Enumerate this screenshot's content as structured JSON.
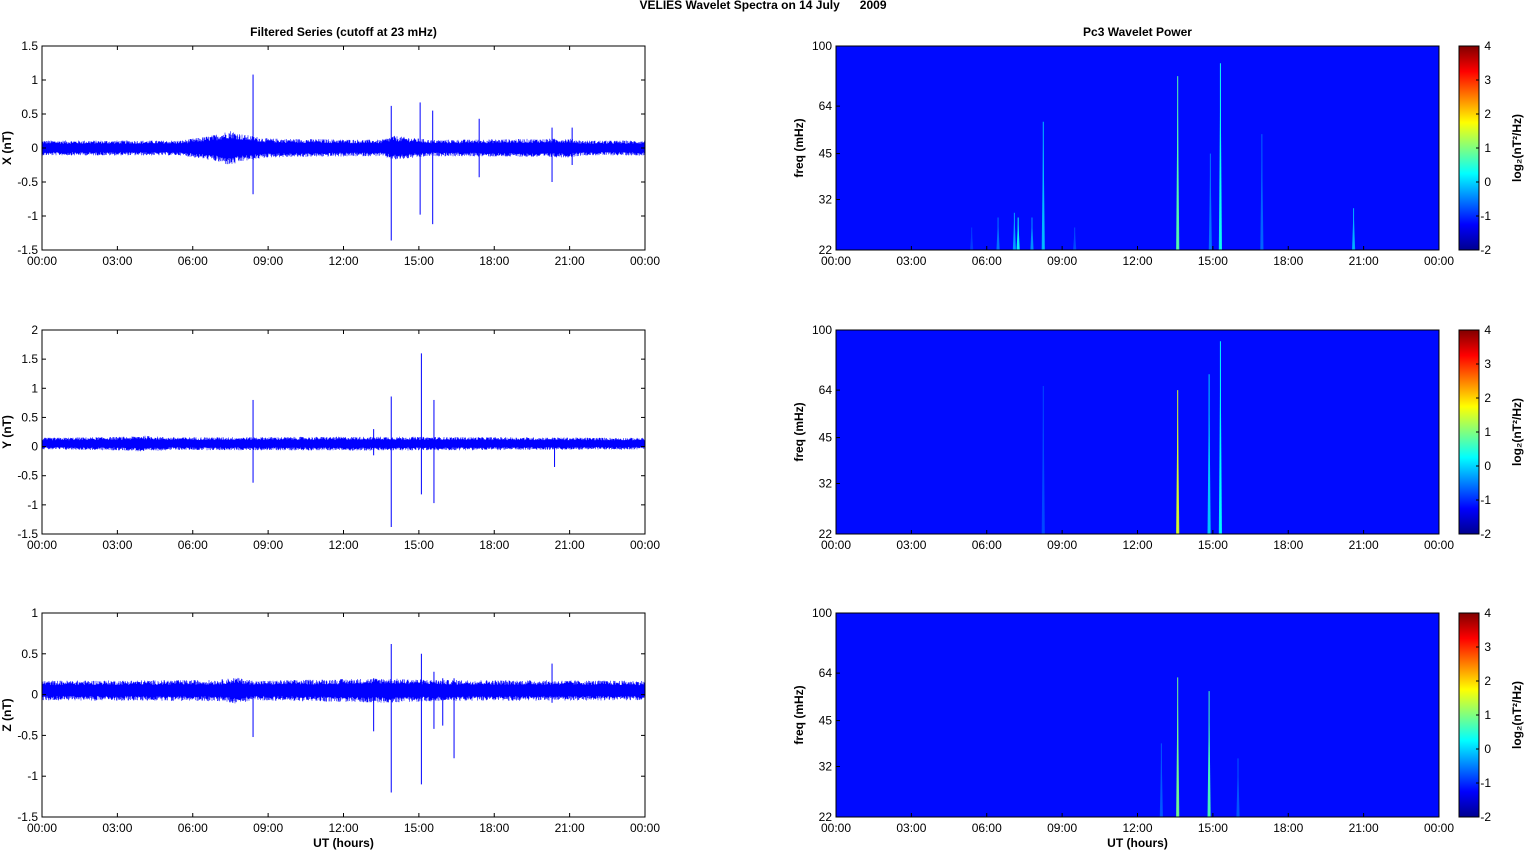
{
  "figure": {
    "title": "VELIES Wavelet Spectra on 14 July      2009",
    "left_title": "Filtered Series (cutoff at 23 mHz)",
    "right_title": "Pc3 Wavelet Power"
  },
  "chart_data": [
    {
      "type": "line",
      "panel": "x-series",
      "title": "Filtered Series (cutoff at 23 mHz)",
      "xlabel": "",
      "ylabel": "X (nT)",
      "xlim": [
        0,
        24
      ],
      "ylim": [
        -1.5,
        1.5
      ],
      "xticks": [
        0,
        3,
        6,
        9,
        12,
        15,
        18,
        21,
        24
      ],
      "xticklabels": [
        "00:00",
        "03:00",
        "06:00",
        "09:00",
        "12:00",
        "15:00",
        "18:00",
        "21:00",
        "00:00"
      ],
      "yticks": [
        -1.5,
        -1,
        -0.5,
        0,
        0.5,
        1,
        1.5
      ],
      "yticklabels": [
        "-1.5",
        "-1",
        "-0.5",
        "0",
        "0.5",
        "1",
        "1.5"
      ],
      "baseline": 0,
      "noise_envelope": [
        {
          "x": 0,
          "amp": 0.11
        },
        {
          "x": 5.5,
          "amp": 0.11
        },
        {
          "x": 6.7,
          "amp": 0.18
        },
        {
          "x": 7.5,
          "amp": 0.26
        },
        {
          "x": 8.0,
          "amp": 0.2
        },
        {
          "x": 9.0,
          "amp": 0.14
        },
        {
          "x": 13.5,
          "amp": 0.12
        },
        {
          "x": 14.0,
          "amp": 0.18
        },
        {
          "x": 15.5,
          "amp": 0.12
        },
        {
          "x": 21.0,
          "amp": 0.14
        },
        {
          "x": 21.5,
          "amp": 0.11
        },
        {
          "x": 24,
          "amp": 0.11
        }
      ],
      "spikes": [
        {
          "x": 8.4,
          "ymin": -0.68,
          "ymax": 1.08
        },
        {
          "x": 13.9,
          "ymin": -1.36,
          "ymax": 0.62
        },
        {
          "x": 15.05,
          "ymin": -0.98,
          "ymax": 0.67
        },
        {
          "x": 15.55,
          "ymin": -1.12,
          "ymax": 0.55
        },
        {
          "x": 17.4,
          "ymin": -0.43,
          "ymax": 0.43
        },
        {
          "x": 20.3,
          "ymin": -0.5,
          "ymax": 0.3
        },
        {
          "x": 21.1,
          "ymin": -0.25,
          "ymax": 0.3
        }
      ]
    },
    {
      "type": "heatmap",
      "panel": "x-power",
      "title": "Pc3 Wavelet Power",
      "xlabel": "",
      "ylabel": "freq (mHz)",
      "colorbar_label": "log₂(nT²/Hz)",
      "xlim": [
        0,
        24
      ],
      "ylim": [
        22,
        100
      ],
      "yscale": "log",
      "clim": [
        -2,
        4
      ],
      "background_value": -2,
      "colormap": "jet",
      "xticks": [
        0,
        3,
        6,
        9,
        12,
        15,
        18,
        21,
        24
      ],
      "xticklabels": [
        "00:00",
        "03:00",
        "06:00",
        "09:00",
        "12:00",
        "15:00",
        "18:00",
        "21:00",
        "00:00"
      ],
      "yticks": [
        22,
        32,
        45,
        64,
        100
      ],
      "yticklabels": [
        "22",
        "32",
        "45",
        "64",
        "100"
      ],
      "cticks": [
        -2,
        -1,
        0,
        1,
        2,
        3,
        4
      ],
      "cticklabels": [
        "-2",
        "-1",
        "0",
        "1",
        "2",
        "3",
        "4"
      ],
      "bursts": [
        {
          "x": 5.4,
          "fmax": 26,
          "value": -1.6
        },
        {
          "x": 6.45,
          "fmax": 28,
          "value": -1.2
        },
        {
          "x": 7.1,
          "fmax": 29,
          "value": -0.9
        },
        {
          "x": 7.25,
          "fmax": 28,
          "value": -0.2
        },
        {
          "x": 7.8,
          "fmax": 28,
          "value": -1.0
        },
        {
          "x": 8.25,
          "fmax": 57,
          "value": -0.7
        },
        {
          "x": 9.5,
          "fmax": 26,
          "value": -1.5
        },
        {
          "x": 13.6,
          "fmax": 80,
          "value": 0.3
        },
        {
          "x": 14.9,
          "fmax": 45,
          "value": -1.2
        },
        {
          "x": 15.3,
          "fmax": 88,
          "value": -0.2
        },
        {
          "x": 16.95,
          "fmax": 52,
          "value": -1.3
        },
        {
          "x": 20.6,
          "fmax": 30,
          "value": -0.8
        }
      ]
    },
    {
      "type": "line",
      "panel": "y-series",
      "title": "",
      "xlabel": "",
      "ylabel": "Y (nT)",
      "xlim": [
        0,
        24
      ],
      "ylim": [
        -1.5,
        2
      ],
      "xticks": [
        0,
        3,
        6,
        9,
        12,
        15,
        18,
        21,
        24
      ],
      "xticklabels": [
        "00:00",
        "03:00",
        "06:00",
        "09:00",
        "12:00",
        "15:00",
        "18:00",
        "21:00",
        "00:00"
      ],
      "yticks": [
        -1.5,
        -1,
        -0.5,
        0,
        0.5,
        1,
        1.5,
        2
      ],
      "yticklabels": [
        "-1.5",
        "-1",
        "-0.5",
        "0",
        "0.5",
        "1",
        "1.5",
        "2"
      ],
      "baseline": 0.05,
      "noise_envelope": [
        {
          "x": 0,
          "amp": 0.1
        },
        {
          "x": 3.5,
          "amp": 0.12
        },
        {
          "x": 4.0,
          "amp": 0.14
        },
        {
          "x": 5.0,
          "amp": 0.11
        },
        {
          "x": 13.5,
          "amp": 0.12
        },
        {
          "x": 24,
          "amp": 0.1
        }
      ],
      "spikes": [
        {
          "x": 8.4,
          "ymin": -0.62,
          "ymax": 0.8
        },
        {
          "x": 13.2,
          "ymin": -0.15,
          "ymax": 0.3
        },
        {
          "x": 13.9,
          "ymin": -1.38,
          "ymax": 0.86
        },
        {
          "x": 15.1,
          "ymin": -0.82,
          "ymax": 1.6
        },
        {
          "x": 15.6,
          "ymin": -0.97,
          "ymax": 0.8
        },
        {
          "x": 20.4,
          "ymin": -0.35,
          "ymax": 0.15
        }
      ]
    },
    {
      "type": "heatmap",
      "panel": "y-power",
      "title": "",
      "xlabel": "",
      "ylabel": "freq (mHz)",
      "colorbar_label": "log₂(nT²/Hz)",
      "xlim": [
        0,
        24
      ],
      "ylim": [
        22,
        100
      ],
      "yscale": "log",
      "clim": [
        -2,
        4
      ],
      "background_value": -2,
      "colormap": "jet",
      "xticks": [
        0,
        3,
        6,
        9,
        12,
        15,
        18,
        21,
        24
      ],
      "xticklabels": [
        "00:00",
        "03:00",
        "06:00",
        "09:00",
        "12:00",
        "15:00",
        "18:00",
        "21:00",
        "00:00"
      ],
      "yticks": [
        22,
        32,
        45,
        64,
        100
      ],
      "yticklabels": [
        "22",
        "32",
        "45",
        "64",
        "100"
      ],
      "cticks": [
        -2,
        -1,
        0,
        1,
        2,
        3,
        4
      ],
      "cticklabels": [
        "-2",
        "-1",
        "0",
        "1",
        "2",
        "3",
        "4"
      ],
      "bursts": [
        {
          "x": 8.25,
          "fmax": 66,
          "value": -1.5
        },
        {
          "x": 13.6,
          "fmax": 64,
          "value": 1.2
        },
        {
          "x": 14.85,
          "fmax": 72,
          "value": -0.6
        },
        {
          "x": 15.3,
          "fmax": 92,
          "value": -0.3
        }
      ]
    },
    {
      "type": "line",
      "panel": "z-series",
      "title": "",
      "xlabel": "UT (hours)",
      "ylabel": "Z (nT)",
      "xlim": [
        0,
        24
      ],
      "ylim": [
        -1.5,
        1
      ],
      "xticks": [
        0,
        3,
        6,
        9,
        12,
        15,
        18,
        21,
        24
      ],
      "xticklabels": [
        "00:00",
        "03:00",
        "06:00",
        "09:00",
        "12:00",
        "15:00",
        "18:00",
        "21:00",
        "00:00"
      ],
      "yticks": [
        -1.5,
        -1,
        -0.5,
        0,
        0.5,
        1
      ],
      "yticklabels": [
        "-1.5",
        "-1",
        "-0.5",
        "0",
        "0.5",
        "1"
      ],
      "baseline": 0.05,
      "noise_envelope": [
        {
          "x": 0,
          "amp": 0.12
        },
        {
          "x": 7.0,
          "amp": 0.13
        },
        {
          "x": 7.7,
          "amp": 0.16
        },
        {
          "x": 8.5,
          "amp": 0.12
        },
        {
          "x": 13.5,
          "amp": 0.15
        },
        {
          "x": 16.0,
          "amp": 0.13
        },
        {
          "x": 24,
          "amp": 0.12
        }
      ],
      "spikes": [
        {
          "x": 8.4,
          "ymin": -0.52,
          "ymax": 0.15
        },
        {
          "x": 13.2,
          "ymin": -0.45,
          "ymax": 0.2
        },
        {
          "x": 13.9,
          "ymin": -1.2,
          "ymax": 0.62
        },
        {
          "x": 15.1,
          "ymin": -1.1,
          "ymax": 0.5
        },
        {
          "x": 15.6,
          "ymin": -0.42,
          "ymax": 0.28
        },
        {
          "x": 15.95,
          "ymin": -0.38,
          "ymax": 0.2
        },
        {
          "x": 16.4,
          "ymin": -0.78,
          "ymax": 0.2
        },
        {
          "x": 20.3,
          "ymin": -0.1,
          "ymax": 0.38
        }
      ]
    },
    {
      "type": "heatmap",
      "panel": "z-power",
      "title": "",
      "xlabel": "UT (hours)",
      "ylabel": "freq (mHz)",
      "colorbar_label": "log₂(nT²/Hz)",
      "xlim": [
        0,
        24
      ],
      "ylim": [
        22,
        100
      ],
      "yscale": "log",
      "clim": [
        -2,
        4
      ],
      "background_value": -2,
      "colormap": "jet",
      "xticks": [
        0,
        3,
        6,
        9,
        12,
        15,
        18,
        21,
        24
      ],
      "xticklabels": [
        "00:00",
        "03:00",
        "06:00",
        "09:00",
        "12:00",
        "15:00",
        "18:00",
        "21:00",
        "00:00"
      ],
      "yticks": [
        22,
        32,
        45,
        64,
        100
      ],
      "yticklabels": [
        "22",
        "32",
        "45",
        "64",
        "100"
      ],
      "cticks": [
        -2,
        -1,
        0,
        1,
        2,
        3,
        4
      ],
      "cticklabels": [
        "-2",
        "-1",
        "0",
        "1",
        "2",
        "3",
        "4"
      ],
      "bursts": [
        {
          "x": 12.95,
          "fmax": 38,
          "value": -1.4
        },
        {
          "x": 13.6,
          "fmax": 62,
          "value": 0.5
        },
        {
          "x": 14.85,
          "fmax": 56,
          "value": 0.2
        },
        {
          "x": 16.0,
          "fmax": 34,
          "value": -1.4
        }
      ]
    }
  ]
}
